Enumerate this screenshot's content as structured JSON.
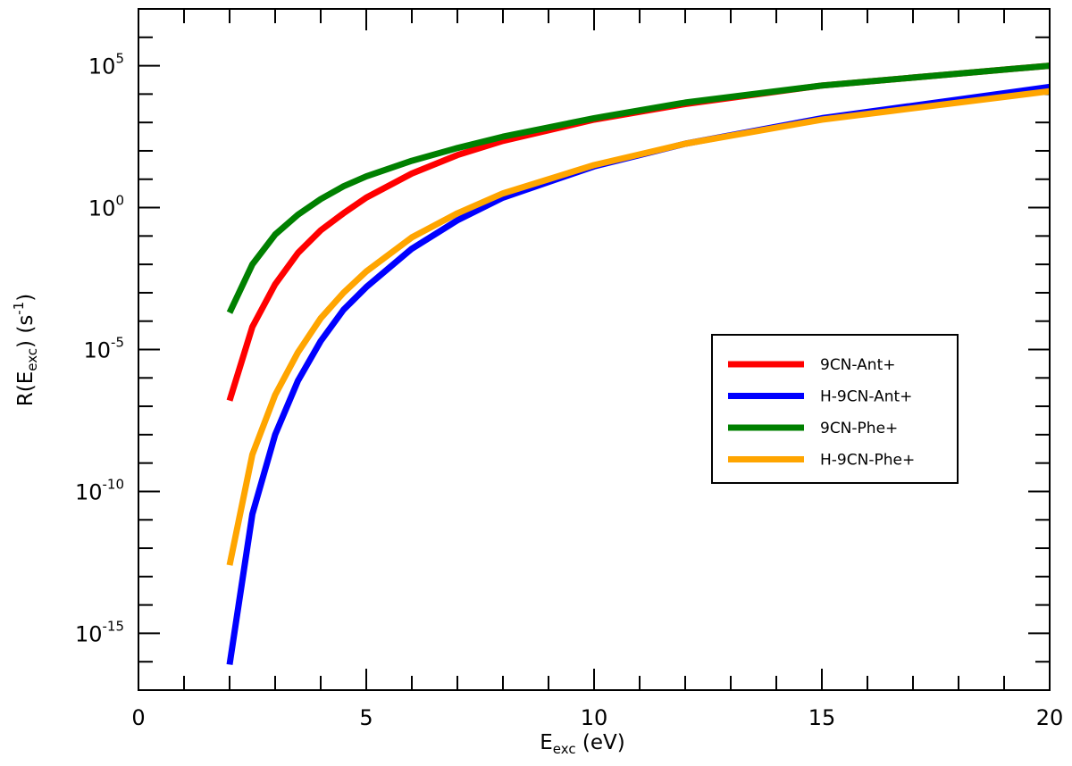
{
  "chart_data": {
    "type": "line",
    "title": "",
    "xlabel": {
      "base": "E",
      "sub": "exc",
      "rest": " (eV)"
    },
    "ylabel": {
      "pre": "R(E",
      "sub": "exc",
      "mid": ") (s",
      "sup": "-1",
      "post": ")"
    },
    "xlim": [
      0,
      20
    ],
    "ylim_log10": [
      -17,
      7
    ],
    "y_scale": "log",
    "x_ticks": [
      "0",
      "5",
      "10",
      "15",
      "20"
    ],
    "y_ticks": [
      {
        "base": "10",
        "exp": "5"
      },
      {
        "base": "10",
        "exp": "0"
      },
      {
        "base": "10",
        "exp": "-5"
      },
      {
        "base": "10",
        "exp": "-10"
      },
      {
        "base": "10",
        "exp": "-15"
      }
    ],
    "grid": false,
    "legend_position": "right",
    "x": [
      2,
      2.5,
      3,
      3.5,
      4,
      4.5,
      5,
      6,
      7,
      8,
      10,
      12,
      15,
      20
    ],
    "series": [
      {
        "name": "9CN-Ant+",
        "color": "#ff0000",
        "log10_values": [
          -6.8,
          -4.2,
          -2.7,
          -1.6,
          -0.8,
          -0.2,
          0.35,
          1.2,
          1.85,
          2.35,
          3.1,
          3.65,
          4.3,
          5.0
        ]
      },
      {
        "name": "H-9CN-Ant+",
        "color": "#0000ff",
        "log10_values": [
          -16.1,
          -10.8,
          -8.0,
          -6.1,
          -4.7,
          -3.6,
          -2.8,
          -1.45,
          -0.45,
          0.35,
          1.45,
          2.25,
          3.15,
          4.25
        ]
      },
      {
        "name": "9CN-Phe+",
        "color": "#008000",
        "log10_values": [
          -3.7,
          -2.0,
          -0.95,
          -0.25,
          0.3,
          0.75,
          1.1,
          1.65,
          2.1,
          2.5,
          3.15,
          3.7,
          4.3,
          5.0
        ]
      },
      {
        "name": "H-9CN-Phe+",
        "color": "#ffa500",
        "log10_values": [
          -12.6,
          -8.7,
          -6.6,
          -5.1,
          -3.9,
          -3.0,
          -2.25,
          -1.05,
          -0.2,
          0.5,
          1.5,
          2.25,
          3.1,
          4.1
        ]
      }
    ]
  }
}
